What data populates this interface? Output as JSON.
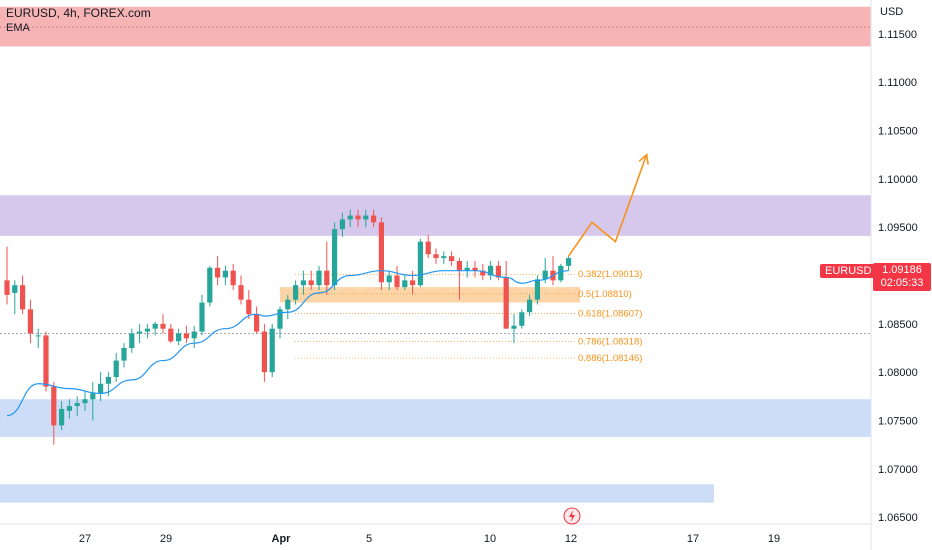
{
  "header": {
    "symbol_line": "EURUSD, 4h, FOREX.com",
    "indicator": "EMA"
  },
  "axis": {
    "currency": "USD",
    "y_ticks": [
      "1.11500",
      "1.11000",
      "1.10500",
      "1.10000",
      "1.09500",
      "1.09000",
      "1.08500",
      "1.08000",
      "1.07500",
      "1.07000",
      "1.06500"
    ],
    "x_ticks": [
      "27",
      "29",
      "Apr",
      "5",
      "10",
      "12",
      "17",
      "19"
    ]
  },
  "last_price": {
    "symbol": "EURUSD",
    "price": "1.09186",
    "countdown": "02:05:33"
  },
  "fib_levels": [
    {
      "label": "0.382(1.09013)"
    },
    {
      "label": "0.5(1.08810)"
    },
    {
      "label": "0.618(1.08607)"
    },
    {
      "label": "0.786(1.08318)"
    },
    {
      "label": "0.886(1.08146)"
    }
  ],
  "colors": {
    "up": "#26a69a",
    "down": "#ef5350",
    "ema": "#2196f3",
    "supply_zone": "#f7b0b0",
    "mid_zone": "#d6c8ec",
    "demand_zone": "#cddcf7",
    "fib_box": "#fbd5a8",
    "projection": "#f7931a",
    "tag": "#f23645"
  },
  "chart_data": {
    "type": "candlestick",
    "symbol": "EURUSD",
    "interval": "4h",
    "source": "FOREX.com",
    "price_range": [
      1.0645,
      1.1185
    ],
    "candles": [
      [
        1.0895,
        1.093,
        1.087,
        1.088
      ],
      [
        1.0882,
        1.0895,
        1.086,
        1.089
      ],
      [
        1.089,
        1.09,
        1.086,
        1.0865
      ],
      [
        1.0865,
        1.0875,
        1.083,
        1.084
      ],
      [
        1.0838,
        1.0845,
        1.0825,
        1.0838
      ],
      [
        1.0838,
        1.0842,
        1.078,
        1.0785
      ],
      [
        1.0785,
        1.079,
        1.0725,
        1.0745
      ],
      [
        1.0745,
        1.077,
        1.074,
        1.0762
      ],
      [
        1.076,
        1.0772,
        1.0752,
        1.0765
      ],
      [
        1.0765,
        1.0775,
        1.0755,
        1.0768
      ],
      [
        1.0768,
        1.078,
        1.076,
        1.0772
      ],
      [
        1.0772,
        1.079,
        1.075,
        1.0778
      ],
      [
        1.0778,
        1.08,
        1.077,
        1.0788
      ],
      [
        1.0788,
        1.08,
        1.0775,
        1.0795
      ],
      [
        1.0795,
        1.082,
        1.079,
        1.0812
      ],
      [
        1.0812,
        1.083,
        1.0805,
        1.0825
      ],
      [
        1.0825,
        1.0845,
        1.082,
        1.084
      ],
      [
        1.084,
        1.085,
        1.083,
        1.0842
      ],
      [
        1.0842,
        1.085,
        1.0835,
        1.0845
      ],
      [
        1.0845,
        1.0852,
        1.0838,
        1.085
      ],
      [
        1.085,
        1.086,
        1.084,
        1.0845
      ],
      [
        1.0845,
        1.085,
        1.083,
        1.0832
      ],
      [
        1.0832,
        1.0845,
        1.0828,
        1.084
      ],
      [
        1.084,
        1.0848,
        1.083,
        1.0835
      ],
      [
        1.0835,
        1.0848,
        1.0825,
        1.0842
      ],
      [
        1.0842,
        1.088,
        1.0838,
        1.0872
      ],
      [
        1.0872,
        1.091,
        1.0868,
        1.0908
      ],
      [
        1.0908,
        1.092,
        1.089,
        1.0898
      ],
      [
        1.0898,
        1.091,
        1.089,
        1.0905
      ],
      [
        1.0905,
        1.0912,
        1.0885,
        1.089
      ],
      [
        1.089,
        1.09,
        1.087,
        1.0875
      ],
      [
        1.0875,
        1.0885,
        1.0855,
        1.086
      ],
      [
        1.086,
        1.0868,
        1.084,
        1.0842
      ],
      [
        1.0842,
        1.085,
        1.079,
        1.08
      ],
      [
        1.08,
        1.085,
        1.0795,
        1.0845
      ],
      [
        1.0845,
        1.0868,
        1.0835,
        1.0865
      ],
      [
        1.0865,
        1.088,
        1.0855,
        1.0875
      ],
      [
        1.0875,
        1.0895,
        1.087,
        1.089
      ],
      [
        1.089,
        1.0905,
        1.088,
        1.0895
      ],
      [
        1.0895,
        1.0905,
        1.0885,
        1.089
      ],
      [
        1.089,
        1.091,
        1.0885,
        1.0905
      ],
      [
        1.0905,
        1.0935,
        1.088,
        1.089
      ],
      [
        1.089,
        1.0955,
        1.0885,
        1.0948
      ],
      [
        1.0948,
        1.0965,
        1.094,
        1.0958
      ],
      [
        1.0958,
        1.0968,
        1.095,
        1.0962
      ],
      [
        1.0962,
        1.0968,
        1.095,
        1.0958
      ],
      [
        1.0958,
        1.0968,
        1.095,
        1.0962
      ],
      [
        1.0962,
        1.0968,
        1.095,
        1.0955
      ],
      [
        1.0955,
        1.096,
        1.0885,
        1.0893
      ],
      [
        1.0893,
        1.0905,
        1.0885,
        1.09
      ],
      [
        1.09,
        1.091,
        1.0885,
        1.0888
      ],
      [
        1.0888,
        1.09,
        1.0885,
        1.0895
      ],
      [
        1.0895,
        1.0905,
        1.088,
        1.089
      ],
      [
        1.089,
        1.0938,
        1.0888,
        1.0935
      ],
      [
        1.0935,
        1.0942,
        1.0918,
        1.0922
      ],
      [
        1.0922,
        1.0928,
        1.0912,
        1.0918
      ],
      [
        1.0918,
        1.0925,
        1.0912,
        1.092
      ],
      [
        1.092,
        1.0925,
        1.091,
        1.0915
      ],
      [
        1.0915,
        1.0918,
        1.0875,
        1.0905
      ],
      [
        1.0905,
        1.0915,
        1.0898,
        1.0908
      ],
      [
        1.0908,
        1.0915,
        1.0898,
        1.0905
      ],
      [
        1.0905,
        1.0912,
        1.0895,
        1.09
      ],
      [
        1.09,
        1.0915,
        1.0895,
        1.091
      ],
      [
        1.091,
        1.0915,
        1.0895,
        1.0898
      ],
      [
        1.0898,
        1.0915,
        1.0845,
        1.0845
      ],
      [
        1.0845,
        1.086,
        1.083,
        1.0848
      ],
      [
        1.0848,
        1.0865,
        1.0845,
        1.0862
      ],
      [
        1.0862,
        1.088,
        1.0858,
        1.0875
      ],
      [
        1.0875,
        1.09,
        1.087,
        1.0896
      ],
      [
        1.0896,
        1.0918,
        1.0892,
        1.0905
      ],
      [
        1.0905,
        1.092,
        1.089,
        1.0895
      ],
      [
        1.0895,
        1.0912,
        1.0893,
        1.091
      ],
      [
        1.091,
        1.092,
        1.0905,
        1.0918
      ]
    ],
    "ema": [
      [
        0,
        1.0755
      ],
      [
        4,
        1.0788
      ],
      [
        8,
        1.0783
      ],
      [
        12,
        1.0778
      ],
      [
        16,
        1.0792
      ],
      [
        20,
        1.0812
      ],
      [
        24,
        1.083
      ],
      [
        28,
        1.0845
      ],
      [
        32,
        1.086
      ],
      [
        33,
        1.0858
      ],
      [
        36,
        1.0862
      ],
      [
        40,
        1.0882
      ],
      [
        44,
        1.09
      ],
      [
        48,
        1.0905
      ],
      [
        52,
        1.09
      ],
      [
        56,
        1.0905
      ],
      [
        60,
        1.0905
      ],
      [
        64,
        1.0898
      ],
      [
        66,
        1.0892
      ],
      [
        68,
        1.0895
      ],
      [
        72,
        1.0905
      ]
    ],
    "zones": [
      {
        "name": "supply",
        "from": 1.1137,
        "to": 1.1178
      },
      {
        "name": "resistance",
        "from": 1.0941,
        "to": 1.0983
      },
      {
        "name": "demand-1",
        "from": 1.0733,
        "to": 1.0772
      },
      {
        "name": "demand-2",
        "from": 1.0665,
        "to": 1.0684
      },
      {
        "name": "fib-box",
        "from": 1.0872,
        "to": 1.0888
      }
    ],
    "dotted_levels": [
      1.1157,
      1.084
    ],
    "fib_prices": [
      1.09013,
      1.0881,
      1.08607,
      1.08318,
      1.08146
    ],
    "projection": [
      [
        72,
        1.092
      ],
      [
        75,
        1.0955
      ],
      [
        78,
        1.0935
      ],
      [
        82,
        1.1025
      ]
    ]
  }
}
